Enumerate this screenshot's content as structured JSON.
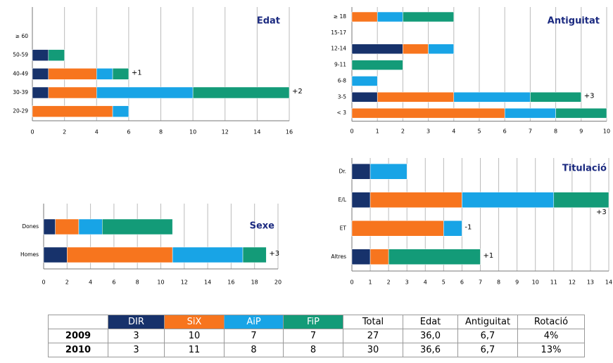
{
  "chart_data": [
    {
      "type": "bar",
      "title": "Edat",
      "categories": [
        "≥ 60",
        "50-59",
        "40-49",
        "30-39",
        "20-29"
      ],
      "series": [
        {
          "name": "DIR",
          "color": "#17326b",
          "values": [
            null,
            1,
            1,
            1,
            null
          ]
        },
        {
          "name": "SiX",
          "color": "#f7751e",
          "values": [
            null,
            null,
            3,
            3,
            5
          ]
        },
        {
          "name": "AiP",
          "color": "#18a4e6",
          "values": [
            null,
            null,
            1,
            6,
            1
          ]
        },
        {
          "name": "FiP",
          "color": "#139b78",
          "values": [
            null,
            1,
            1,
            6,
            null
          ]
        }
      ],
      "annotations": [
        null,
        null,
        "+1",
        "+2",
        null
      ],
      "xlim": [
        0,
        16
      ],
      "xticks": [
        0,
        2,
        4,
        6,
        8,
        10,
        12,
        14,
        16
      ],
      "grid": true
    },
    {
      "type": "bar",
      "title": "Antiguitat",
      "categories": [
        "≥ 18",
        "15-17",
        "12-14",
        "9-11",
        "6-8",
        "3-5",
        "< 3"
      ],
      "series": [
        {
          "name": "DIR",
          "color": "#17326b",
          "values": [
            null,
            null,
            2,
            null,
            null,
            1,
            null
          ]
        },
        {
          "name": "SiX",
          "color": "#f7751e",
          "values": [
            1,
            null,
            1,
            null,
            null,
            3,
            6
          ]
        },
        {
          "name": "AiP",
          "color": "#18a4e6",
          "values": [
            1,
            null,
            1,
            null,
            1,
            3,
            2
          ]
        },
        {
          "name": "FiP",
          "color": "#139b78",
          "values": [
            2,
            null,
            null,
            2,
            null,
            2,
            2
          ]
        }
      ],
      "annotations": [
        null,
        null,
        null,
        null,
        null,
        "+3",
        null
      ],
      "xlim": [
        0,
        10
      ],
      "xticks": [
        0,
        1,
        2,
        3,
        4,
        5,
        6,
        7,
        8,
        9,
        10
      ],
      "grid": true
    },
    {
      "type": "bar",
      "title": "Sexe",
      "categories": [
        "Dones",
        "Homes"
      ],
      "series": [
        {
          "name": "DIR",
          "color": "#17326b",
          "values": [
            1,
            2
          ]
        },
        {
          "name": "SiX",
          "color": "#f7751e",
          "values": [
            2,
            9
          ]
        },
        {
          "name": "AiP",
          "color": "#18a4e6",
          "values": [
            2,
            6
          ]
        },
        {
          "name": "FiP",
          "color": "#139b78",
          "values": [
            6,
            2
          ]
        }
      ],
      "annotations": [
        null,
        "+3"
      ],
      "xlim": [
        0,
        20
      ],
      "xticks": [
        0,
        2,
        4,
        6,
        8,
        10,
        12,
        14,
        16,
        18,
        20
      ],
      "grid": true
    },
    {
      "type": "bar",
      "title": "Titulació",
      "categories": [
        "Dr.",
        "E/L",
        "ET",
        "Altres"
      ],
      "series": [
        {
          "name": "DIR",
          "color": "#17326b",
          "values": [
            1,
            1,
            null,
            1
          ]
        },
        {
          "name": "SiX",
          "color": "#f7751e",
          "values": [
            null,
            5,
            5,
            1
          ]
        },
        {
          "name": "AiP",
          "color": "#18a4e6",
          "values": [
            2,
            5,
            1,
            null
          ]
        },
        {
          "name": "FiP",
          "color": "#139b78",
          "values": [
            null,
            3,
            null,
            5
          ]
        }
      ],
      "annotations": [
        null,
        "+3",
        "-1",
        "+1"
      ],
      "xlim": [
        0,
        14
      ],
      "xticks": [
        0,
        1,
        2,
        3,
        4,
        5,
        6,
        7,
        8,
        9,
        10,
        11,
        12,
        13,
        14
      ],
      "grid": true
    }
  ],
  "table": {
    "header": [
      "Total",
      "Edat",
      "Antiguitat",
      "Rotació"
    ],
    "rows": [
      [
        "2009",
        "3",
        "10",
        "7",
        "7",
        "27",
        "36,0",
        "6,7",
        "4%"
      ],
      [
        "2010",
        "3",
        "11",
        "8",
        "8",
        "30",
        "36,6",
        "6,7",
        "13%"
      ]
    ]
  }
}
